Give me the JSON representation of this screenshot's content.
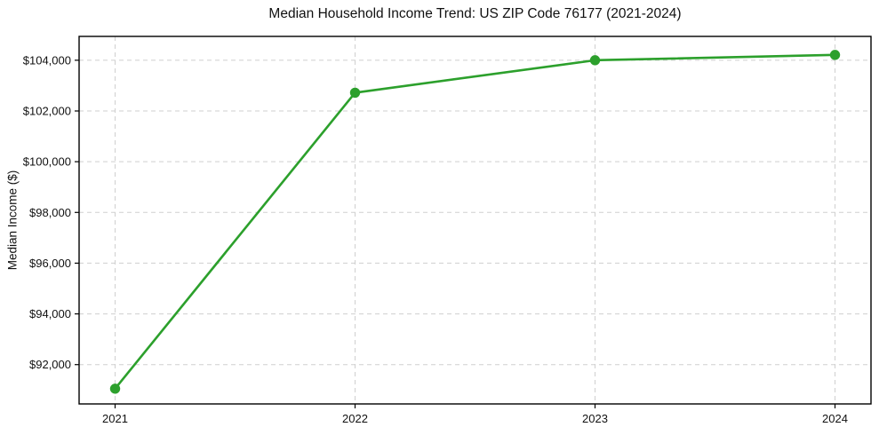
{
  "chart_data": {
    "type": "line",
    "title": "Median Household Income Trend: US ZIP Code 76177 (2021-2024)",
    "xlabel": "",
    "ylabel": "Median Income ($)",
    "series": [
      {
        "name": "Median Household Income",
        "x": [
          2021,
          2022,
          2023,
          2024
        ],
        "values": [
          91050,
          102720,
          104000,
          104210
        ]
      }
    ],
    "xtick_values": [
      2021,
      2022,
      2023,
      2024
    ],
    "xtick_labels": [
      "2021",
      "2022",
      "2023",
      "2024"
    ],
    "ytick_values": [
      92000,
      94000,
      96000,
      98000,
      100000,
      102000,
      104000
    ],
    "ytick_labels": [
      "$92,000",
      "$94,000",
      "$96,000",
      "$98,000",
      "$100,000",
      "$102,000",
      "$104,000"
    ],
    "xlim": [
      2020.85,
      2024.15
    ],
    "ylim": [
      90450,
      104940
    ],
    "grid": true,
    "grid_style": "dashed",
    "legend": "none",
    "colors": {
      "line": "#2ca02c",
      "marker": "#2ca02c",
      "grid": "#cfcfcf",
      "axis": "#000000",
      "background": "#ffffff",
      "text": "#111111"
    },
    "marker": "circle"
  }
}
